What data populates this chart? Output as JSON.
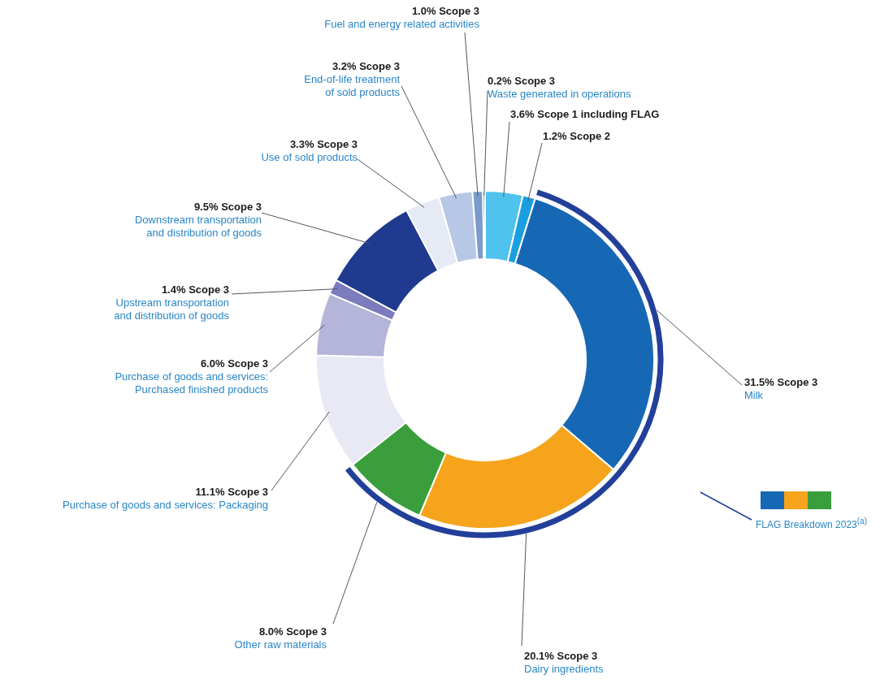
{
  "chart_data": {
    "type": "donut",
    "categories": [
      null,
      null,
      "Milk",
      "Dairy ingredients",
      "Other raw materials",
      "Purchase of goods and services: Packaging",
      "Purchase of goods and services:\nPurchased finished products",
      "Upstream transportation\nand distribution of goods",
      "Downstream transportation\nand distribution of goods",
      "Use of sold products",
      "End-of-life treatment\nof sold products",
      "Fuel and energy related activities",
      "Waste generated in operations"
    ],
    "values": [
      3.6,
      1.2,
      31.5,
      20.1,
      8.0,
      11.1,
      6.0,
      1.4,
      9.5,
      3.3,
      3.2,
      1.0,
      0.2
    ],
    "colors": [
      "#4fc3ee",
      "#1a9ee0",
      "#1668b4",
      "#f5a41c",
      "#3a9e3c",
      "#e8e9f5",
      "#b5b4d9",
      "#7b7bbd",
      "#1f3a8e",
      "#e6eaf5",
      "#b7c7e6",
      "#7a9bcc",
      "#3b5aa0"
    ],
    "value_labels": [
      "3.6% Scope 1 including FLAG",
      "1.2% Scope 2",
      "31.5% Scope 3",
      "20.1% Scope 3",
      "8.0% Scope 3",
      "11.1% Scope 3",
      "6.0% Scope 3",
      "1.4% Scope 3",
      "9.5% Scope 3",
      "3.3% Scope 3",
      "3.2% Scope 3",
      "1.0% Scope 3",
      "0.2% Scope 3"
    ],
    "annotations": [
      "FLAG Breakdown 2023$^{(a)}$"
    ]
  }
}
